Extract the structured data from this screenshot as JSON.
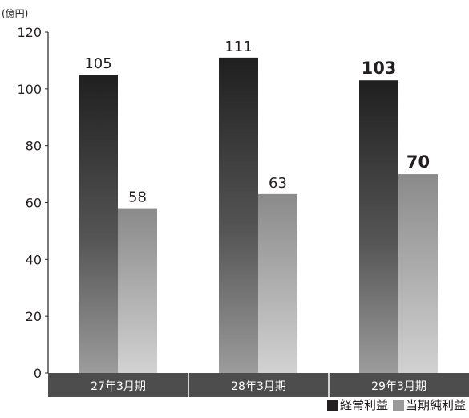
{
  "chart_data": {
    "type": "bar",
    "ylabel": "(億円)",
    "categories": [
      "27年3月期",
      "28年3月期",
      "29年3月期"
    ],
    "series": [
      {
        "name": "経常利益",
        "values": [
          105,
          111,
          103
        ],
        "color": "#2b2b2b"
      },
      {
        "name": "当期純利益",
        "values": [
          58,
          63,
          70
        ],
        "color": "#9a9a9a"
      }
    ],
    "data_labels": {
      "経常利益": [
        "105",
        "111",
        "103"
      ],
      "当期純利益": [
        "58",
        "63",
        "70"
      ]
    },
    "highlight_category": "29年3月期",
    "yticks": [
      "0",
      "20",
      "40",
      "60",
      "80",
      "100",
      "120"
    ],
    "ylim": [
      0,
      120
    ],
    "grid": false,
    "legend_position": "bottom-right",
    "legend_marker": "■"
  }
}
